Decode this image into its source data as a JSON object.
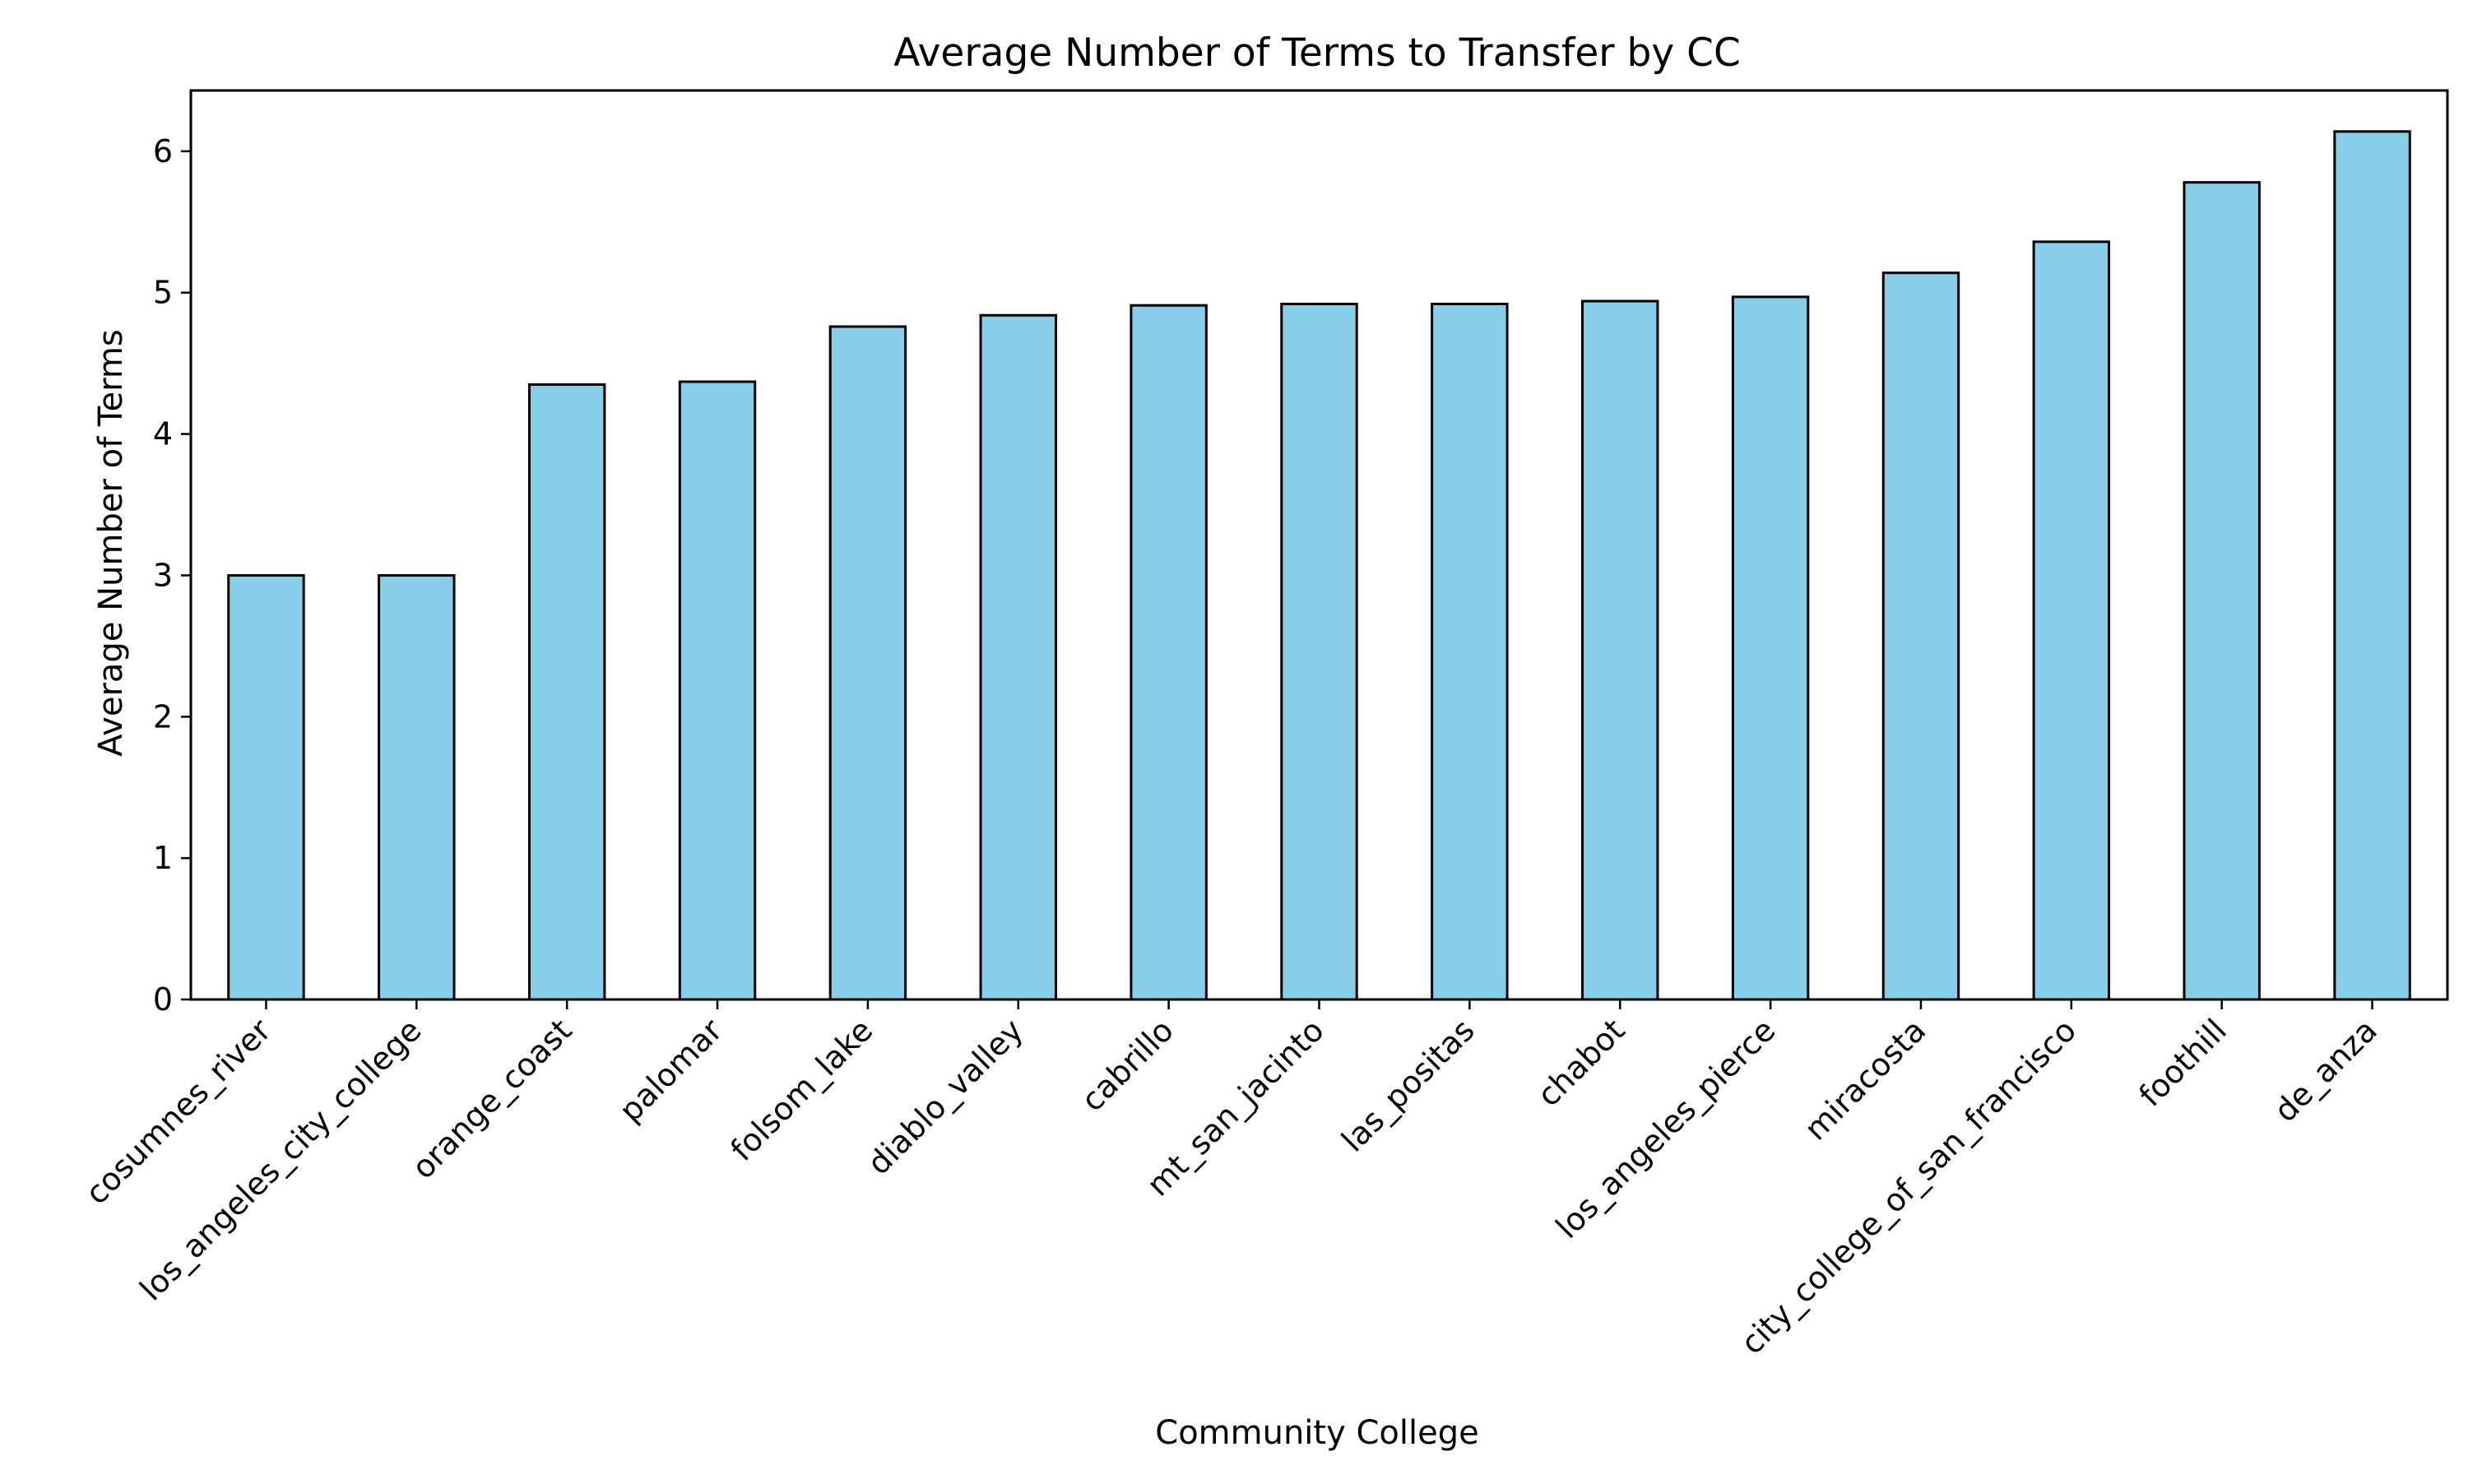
{
  "chart_data": {
    "type": "bar",
    "title": "Average Number of Terms to Transfer by CC",
    "xlabel": "Community College",
    "ylabel": "Average Number of Terms",
    "categories": [
      "cosumnes_river",
      "los_angeles_city_college",
      "orange_coast",
      "palomar",
      "folsom_lake",
      "diablo_valley",
      "cabrillo",
      "mt_san_jacinto",
      "las_positas",
      "chabot",
      "los_angeles_pierce",
      "miracosta",
      "city_college_of_san_francisco",
      "foothill",
      "de_anza"
    ],
    "values": [
      3.0,
      3.0,
      4.35,
      4.37,
      4.76,
      4.84,
      4.91,
      4.92,
      4.92,
      4.94,
      4.97,
      5.14,
      5.36,
      5.78,
      6.14
    ],
    "ylim": [
      0,
      6.43
    ],
    "yticks": [
      0,
      1,
      2,
      3,
      4,
      5,
      6
    ],
    "grid": false,
    "legend": "none",
    "bar_color": "#87ceeb",
    "edge_color": "#000000"
  }
}
